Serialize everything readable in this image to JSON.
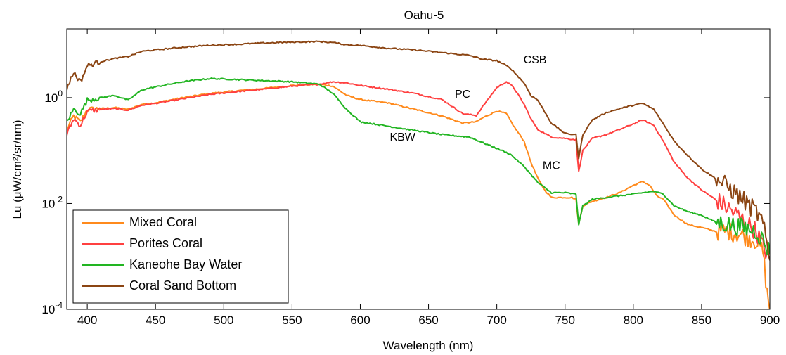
{
  "chart_data": {
    "type": "line",
    "title": "Oahu-5",
    "xlabel": "Wavelength (nm)",
    "ylabel": "Lu (μW/cm²/sr/nm)",
    "xlim": [
      385,
      900
    ],
    "ylim": [
      0.0001,
      20
    ],
    "yscale": "log",
    "grid": false,
    "legend_position": "bottom-left",
    "xticks": [
      400,
      450,
      500,
      550,
      600,
      650,
      700,
      750,
      800,
      850,
      900
    ],
    "xtick_labels": [
      "400",
      "450",
      "500",
      "550",
      "600",
      "650",
      "700",
      "750",
      "800",
      "850",
      "900"
    ],
    "yticks": [
      {
        "value": 1,
        "base": "10",
        "exp": "0"
      },
      {
        "value": 0.01,
        "base": "10",
        "exp": "-2"
      },
      {
        "value": 0.0001,
        "base": "10",
        "exp": "-4"
      }
    ],
    "series": [
      {
        "name": "Mixed Coral",
        "color": "#ff8a1c",
        "x": [
          385,
          390,
          395,
          400,
          410,
          420,
          430,
          440,
          450,
          470,
          490,
          510,
          530,
          550,
          570,
          580,
          590,
          600,
          620,
          640,
          660,
          675,
          685,
          690,
          700,
          707,
          712,
          720,
          725,
          730,
          735,
          740,
          745,
          750,
          755,
          758,
          760,
          763,
          770,
          780,
          790,
          800,
          807,
          812,
          817,
          822,
          830,
          840,
          850,
          860,
          870,
          880,
          890,
          895,
          898,
          900
        ],
        "y": [
          0.25,
          0.45,
          0.35,
          0.6,
          0.62,
          0.65,
          0.6,
          0.75,
          0.8,
          1.0,
          1.2,
          1.35,
          1.5,
          1.7,
          1.8,
          1.65,
          1.1,
          0.92,
          0.8,
          0.6,
          0.45,
          0.33,
          0.35,
          0.42,
          0.56,
          0.5,
          0.3,
          0.15,
          0.06,
          0.03,
          0.018,
          0.013,
          0.013,
          0.013,
          0.013,
          0.012,
          0.004,
          0.009,
          0.011,
          0.013,
          0.016,
          0.022,
          0.026,
          0.022,
          0.014,
          0.012,
          0.006,
          0.004,
          0.0035,
          0.003,
          0.003,
          0.0025,
          0.002,
          0.0012,
          0.0002,
          0.0001
        ]
      },
      {
        "name": "Porites Coral",
        "color": "#ff4040",
        "x": [
          385,
          390,
          395,
          400,
          410,
          420,
          430,
          440,
          450,
          470,
          490,
          510,
          530,
          550,
          570,
          580,
          590,
          600,
          620,
          640,
          660,
          675,
          685,
          690,
          700,
          707,
          712,
          720,
          725,
          730,
          740,
          750,
          758,
          760,
          763,
          770,
          780,
          790,
          800,
          807,
          815,
          822,
          830,
          840,
          850,
          860,
          870,
          880,
          890,
          895,
          900
        ],
        "y": [
          0.2,
          0.4,
          0.3,
          0.55,
          0.6,
          0.62,
          0.58,
          0.72,
          0.78,
          0.95,
          1.15,
          1.3,
          1.45,
          1.65,
          1.8,
          2.0,
          1.9,
          1.7,
          1.45,
          1.2,
          0.92,
          0.5,
          0.46,
          0.7,
          1.55,
          2.0,
          1.6,
          0.75,
          0.4,
          0.25,
          0.18,
          0.17,
          0.16,
          0.04,
          0.1,
          0.17,
          0.2,
          0.25,
          0.32,
          0.38,
          0.3,
          0.15,
          0.06,
          0.03,
          0.018,
          0.012,
          0.008,
          0.005,
          0.003,
          0.0015,
          0.001
        ]
      },
      {
        "name": "Kaneohe Bay Water",
        "color": "#22b522",
        "x": [
          385,
          390,
          395,
          400,
          410,
          420,
          430,
          440,
          450,
          470,
          490,
          510,
          530,
          550,
          570,
          580,
          590,
          600,
          620,
          640,
          660,
          680,
          690,
          700,
          710,
          720,
          730,
          735,
          740,
          750,
          758,
          760,
          763,
          770,
          780,
          790,
          800,
          807,
          815,
          822,
          830,
          840,
          850,
          860,
          870,
          880,
          890,
          895,
          900
        ],
        "y": [
          0.35,
          0.6,
          0.5,
          0.9,
          1.0,
          1.1,
          0.9,
          1.4,
          1.6,
          2.0,
          2.3,
          2.2,
          2.1,
          2.0,
          1.8,
          1.2,
          0.6,
          0.35,
          0.29,
          0.24,
          0.2,
          0.18,
          0.14,
          0.11,
          0.085,
          0.05,
          0.025,
          0.02,
          0.016,
          0.016,
          0.015,
          0.004,
          0.009,
          0.012,
          0.013,
          0.014,
          0.015,
          0.016,
          0.017,
          0.015,
          0.009,
          0.007,
          0.006,
          0.0045,
          0.004,
          0.0035,
          0.003,
          0.002,
          0.0012
        ]
      },
      {
        "name": "Coral Sand Bottom",
        "color": "#8b4513",
        "x": [
          385,
          390,
          395,
          400,
          410,
          420,
          430,
          440,
          450,
          470,
          490,
          510,
          530,
          550,
          570,
          580,
          590,
          600,
          620,
          640,
          660,
          680,
          690,
          700,
          705,
          710,
          720,
          725,
          730,
          740,
          750,
          758,
          760,
          763,
          770,
          780,
          790,
          800,
          807,
          815,
          822,
          830,
          840,
          850,
          860,
          870,
          880,
          890,
          895,
          900
        ],
        "y": [
          1.5,
          3.0,
          2.0,
          4.0,
          4.8,
          5.5,
          6.0,
          7.5,
          8.0,
          9.0,
          9.8,
          10.2,
          10.8,
          11.2,
          11.5,
          11.0,
          10.0,
          9.7,
          8.6,
          8.0,
          7.1,
          6.3,
          5.3,
          5.0,
          4.3,
          3.6,
          1.9,
          1.1,
          0.9,
          0.33,
          0.21,
          0.2,
          0.07,
          0.2,
          0.38,
          0.52,
          0.62,
          0.72,
          0.78,
          0.6,
          0.32,
          0.15,
          0.08,
          0.045,
          0.03,
          0.02,
          0.012,
          0.007,
          0.004,
          0.0008
        ]
      }
    ],
    "annotations": [
      {
        "text": "CSB",
        "x": 728,
        "y": 4.5
      },
      {
        "text": "PC",
        "x": 675,
        "y": 1.0
      },
      {
        "text": "KBW",
        "x": 631,
        "y": 0.155
      },
      {
        "text": "MC",
        "x": 740,
        "y": 0.045
      }
    ]
  }
}
